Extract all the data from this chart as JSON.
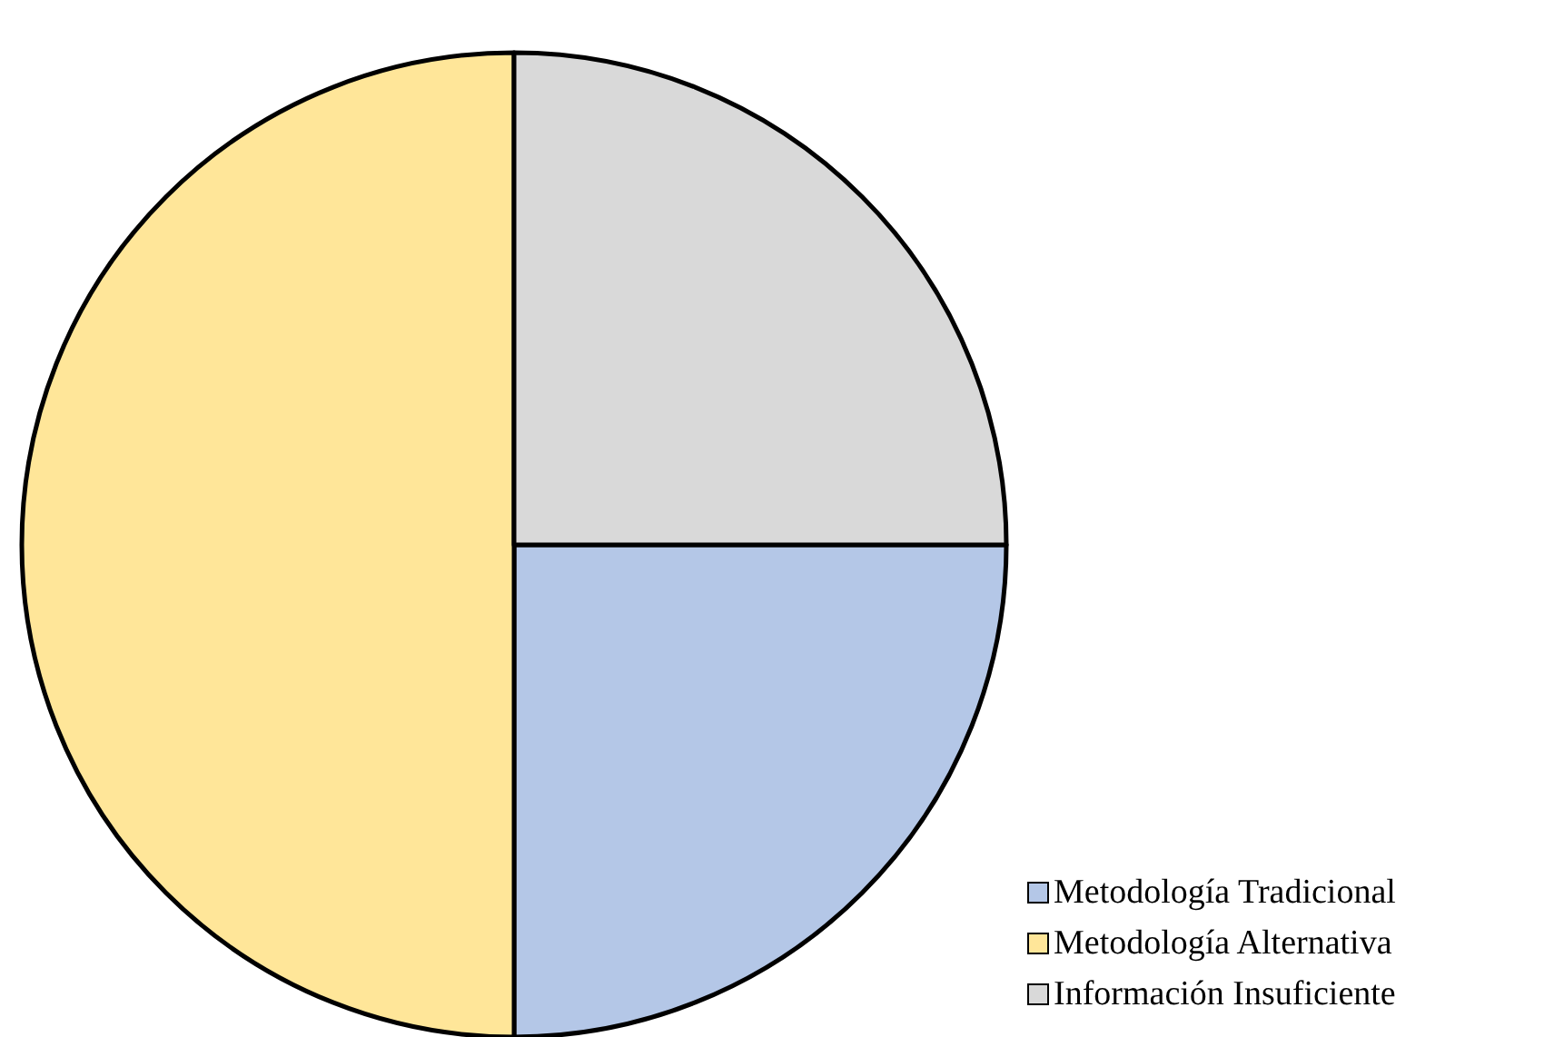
{
  "chart_data": {
    "type": "pie",
    "categories": [
      "Metodología Tradicional",
      "Metodología Alternativa",
      "Información Insuficiente"
    ],
    "values": [
      25,
      50,
      25
    ],
    "colors": [
      "#b4c7e7",
      "#ffe699",
      "#d9d9d9"
    ],
    "legend": "bottom right"
  }
}
